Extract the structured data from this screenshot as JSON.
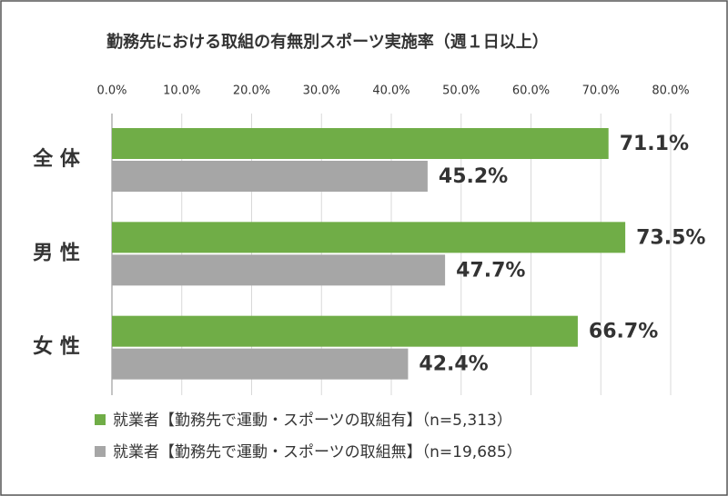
{
  "chart_data": {
    "type": "bar",
    "orientation": "horizontal",
    "title": "勤務先における取組の有無別スポーツ実施率（週１日以上）",
    "categories": [
      "全 体",
      "男 性",
      "女 性"
    ],
    "series": [
      {
        "name": "就業者【勤務先で運動・スポーツの取組有】（n=5,313）",
        "color": "#70ad47",
        "values": [
          71.1,
          73.5,
          66.7
        ],
        "value_labels": [
          "71.1%",
          "73.5%",
          "66.7%"
        ]
      },
      {
        "name": "就業者【勤務先で運動・スポーツの取組無】（n=19,685）",
        "color": "#a6a6a6",
        "values": [
          45.2,
          47.7,
          42.4
        ],
        "value_labels": [
          "45.2%",
          "47.7%",
          "42.4%"
        ]
      }
    ],
    "xlim": [
      0,
      80
    ],
    "xticks": [
      {
        "value": 0,
        "label": "0.0%"
      },
      {
        "value": 10,
        "label": "10.0%"
      },
      {
        "value": 20,
        "label": "20.0%"
      },
      {
        "value": 30,
        "label": "30.0%"
      },
      {
        "value": 40,
        "label": "40.0%"
      },
      {
        "value": 50,
        "label": "50.0%"
      },
      {
        "value": 60,
        "label": "60.0%"
      },
      {
        "value": 70,
        "label": "70.0%"
      },
      {
        "value": 80,
        "label": "80.0%"
      }
    ],
    "grid": true
  }
}
